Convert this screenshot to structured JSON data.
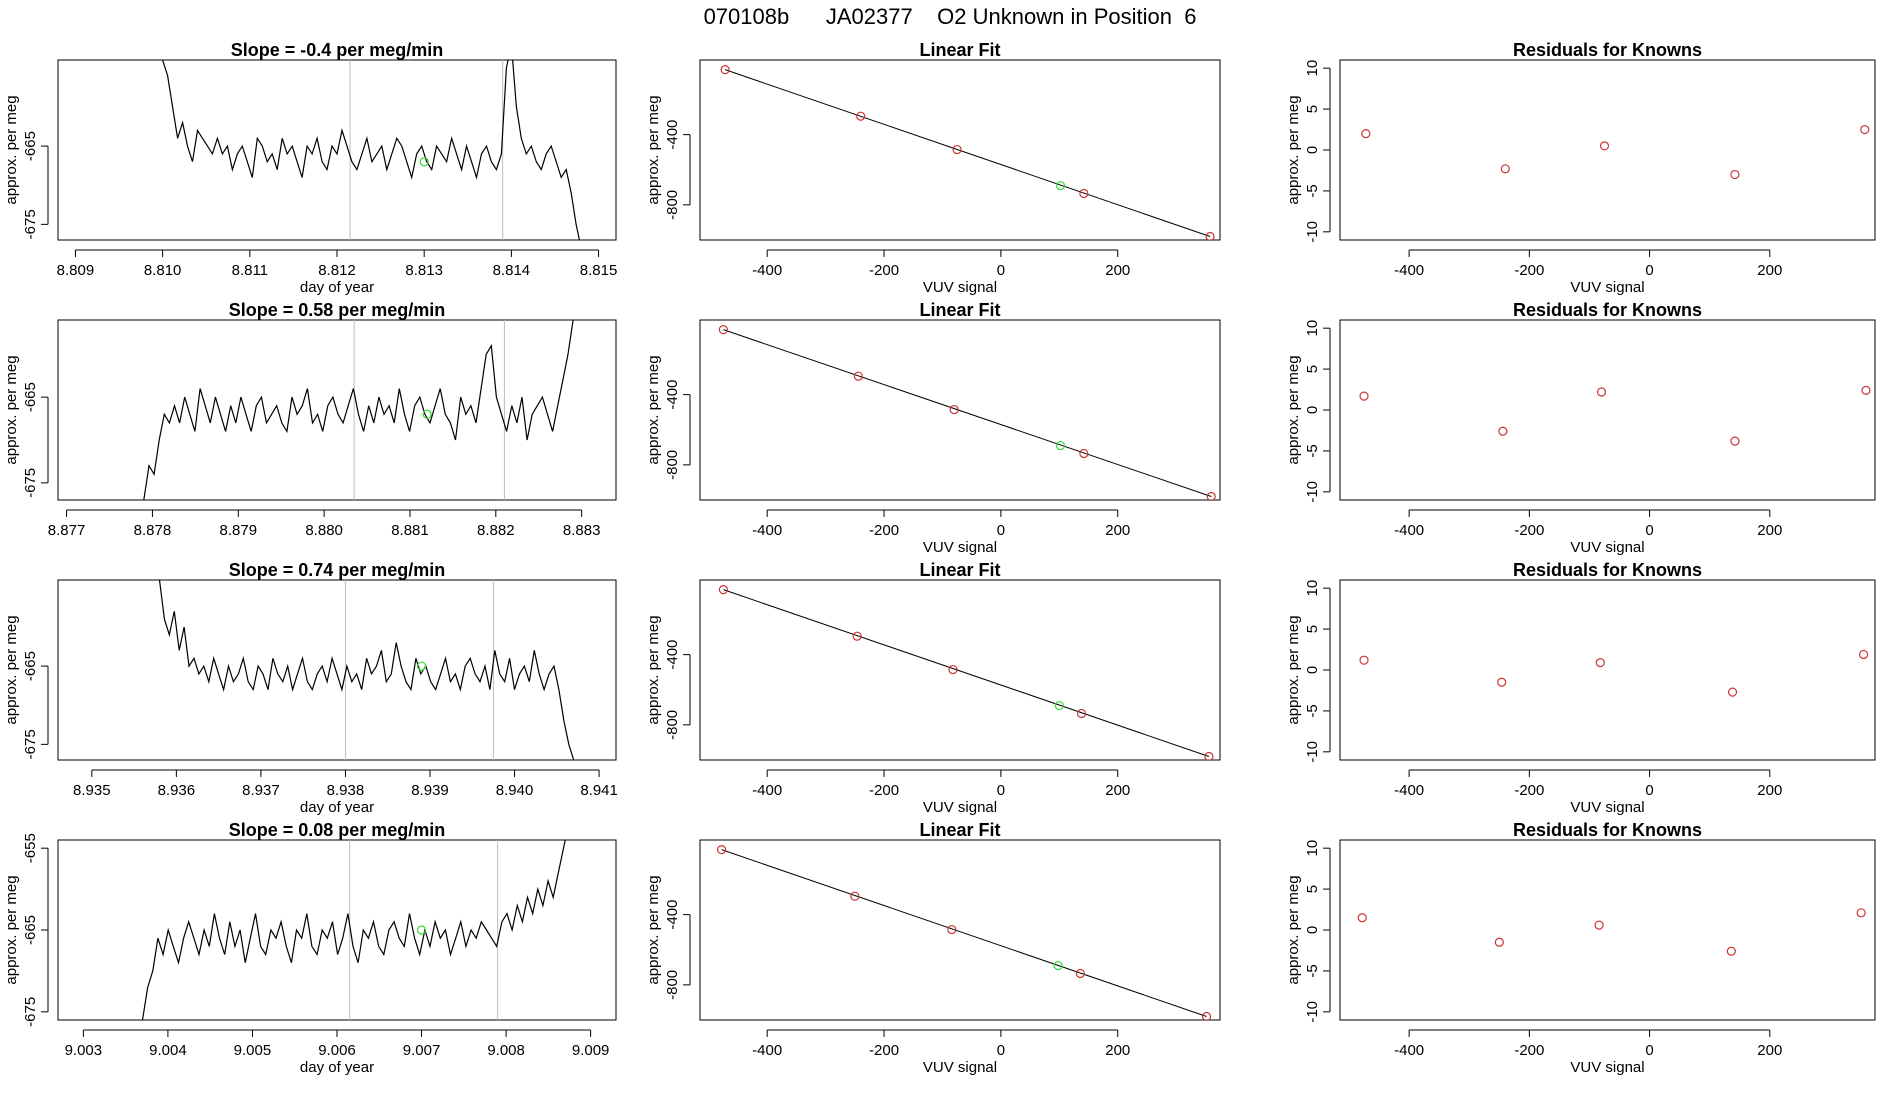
{
  "page_title": "070108b      JA02377    O2 Unknown in Position  6",
  "colors": {
    "line": "#000000",
    "known_point": "#cd3333",
    "unknown_point": "#33dd33",
    "marker_line": "#bebebe"
  },
  "chart_data": [
    {
      "type": "line",
      "row": 1,
      "panel": "time-series",
      "title": "Slope =  -0.4  per meg/min",
      "xlabel": "day of year",
      "ylabel": "approx. per meg",
      "xlim": [
        8.8088,
        8.8152
      ],
      "ylim": [
        -677,
        -654
      ],
      "xticks": [
        "8.809",
        "8.810",
        "8.811",
        "8.812",
        "8.813",
        "8.814",
        "8.815"
      ],
      "xtick_values": [
        8.809,
        8.81,
        8.811,
        8.812,
        8.813,
        8.814,
        8.815
      ],
      "yticks": [
        "-665",
        "-675"
      ],
      "ytick_values": [
        -665,
        -675
      ],
      "x_start": 8.81,
      "x_end": 8.8148,
      "values": [
        -654,
        -656,
        -660,
        -664,
        -662,
        -665,
        -667,
        -663,
        -664,
        -665,
        -666,
        -664,
        -666,
        -665,
        -668,
        -666,
        -665,
        -667,
        -669,
        -664,
        -665,
        -667,
        -666,
        -668,
        -664,
        -666,
        -665,
        -667,
        -669,
        -665,
        -666,
        -664,
        -667,
        -668,
        -665,
        -666,
        -663,
        -665,
        -667,
        -668,
        -666,
        -664,
        -667,
        -666,
        -665,
        -668,
        -666,
        -664,
        -665,
        -667,
        -669,
        -666,
        -665,
        -667,
        -668,
        -665,
        -666,
        -667,
        -664,
        -666,
        -668,
        -665,
        -667,
        -669,
        -666,
        -665,
        -667,
        -668,
        -666,
        -655,
        -652,
        -660,
        -664,
        -666,
        -665,
        -667,
        -668,
        -666,
        -665,
        -667,
        -669,
        -668,
        -671,
        -675,
        -678
      ],
      "unknown_point": {
        "x": 8.813,
        "y": -667
      },
      "marker_lines": [
        8.81215,
        8.8139
      ]
    },
    {
      "type": "scatter",
      "row": 1,
      "panel": "linear-fit",
      "title": "Linear Fit",
      "xlabel": "VUV signal",
      "ylabel": "approx. per meg",
      "xlim": [
        -515,
        375
      ],
      "ylim": [
        -1000,
        25
      ],
      "xticks": [
        "-400",
        "-200",
        "0",
        "200"
      ],
      "xtick_values": [
        -400,
        -200,
        0,
        200
      ],
      "yticks": [
        "-400",
        "-800"
      ],
      "ytick_values": [
        -400,
        -800
      ],
      "known_points": [
        {
          "x": -472,
          "y": -30
        },
        {
          "x": -240,
          "y": -295
        },
        {
          "x": -75,
          "y": -485
        },
        {
          "x": 142,
          "y": -735
        },
        {
          "x": 358,
          "y": -980
        }
      ],
      "unknown_point": {
        "x": 102,
        "y": -690
      },
      "fit_line": [
        {
          "x": -472,
          "y": -30
        },
        {
          "x": 358,
          "y": -980
        }
      ]
    },
    {
      "type": "scatter",
      "row": 1,
      "panel": "residuals",
      "title": "Residuals for Knowns",
      "xlabel": "VUV signal",
      "ylabel": "approx. per meg",
      "xlim": [
        -515,
        375
      ],
      "ylim": [
        -11,
        11
      ],
      "xticks": [
        "-400",
        "-200",
        "0",
        "200"
      ],
      "xtick_values": [
        -400,
        -200,
        0,
        200
      ],
      "yticks": [
        "10",
        "5",
        "0",
        "-5",
        "-10"
      ],
      "ytick_values": [
        10,
        5,
        0,
        -5,
        -10
      ],
      "known_points": [
        {
          "x": -472,
          "y": 2.0
        },
        {
          "x": -240,
          "y": -2.3
        },
        {
          "x": -75,
          "y": 0.5
        },
        {
          "x": 142,
          "y": -3.0
        },
        {
          "x": 358,
          "y": 2.5
        }
      ]
    },
    {
      "type": "line",
      "row": 2,
      "panel": "time-series",
      "title": "Slope =  0.58  per meg/min",
      "xlabel": "",
      "ylabel": "approx. per meg",
      "xlim": [
        8.8769,
        8.8834
      ],
      "ylim": [
        -677,
        -656
      ],
      "xticks": [
        "8.877",
        "8.878",
        "8.879",
        "8.880",
        "8.881",
        "8.882",
        "8.883"
      ],
      "xtick_values": [
        8.877,
        8.878,
        8.879,
        8.88,
        8.881,
        8.882,
        8.883
      ],
      "yticks": [
        "-665",
        "-675"
      ],
      "ytick_values": [
        -665,
        -675
      ],
      "x_start": 8.8779,
      "x_end": 8.8829,
      "values": [
        -677,
        -673,
        -674,
        -670,
        -667,
        -668,
        -666,
        -668,
        -665,
        -667,
        -669,
        -664,
        -666,
        -668,
        -665,
        -667,
        -669,
        -666,
        -668,
        -665,
        -667,
        -669,
        -666,
        -665,
        -668,
        -667,
        -666,
        -668,
        -669,
        -665,
        -667,
        -666,
        -664,
        -668,
        -667,
        -669,
        -666,
        -665,
        -667,
        -668,
        -666,
        -664,
        -667,
        -669,
        -666,
        -668,
        -665,
        -667,
        -666,
        -668,
        -664,
        -667,
        -669,
        -666,
        -665,
        -667,
        -668,
        -666,
        -664,
        -667,
        -668,
        -670,
        -665,
        -667,
        -666,
        -668,
        -664,
        -660,
        -659,
        -665,
        -667,
        -669,
        -666,
        -668,
        -665,
        -670,
        -667,
        -666,
        -665,
        -667,
        -669,
        -666,
        -663,
        -660,
        -656
      ],
      "unknown_point": {
        "x": 8.8812,
        "y": -667
      },
      "marker_lines": [
        8.88035,
        8.8821
      ]
    },
    {
      "type": "scatter",
      "row": 2,
      "panel": "linear-fit",
      "title": "Linear Fit",
      "xlabel": "VUV signal",
      "ylabel": "approx. per meg",
      "xlim": [
        -515,
        375
      ],
      "ylim": [
        -1000,
        25
      ],
      "xticks": [
        "-400",
        "-200",
        "0",
        "200"
      ],
      "xtick_values": [
        -400,
        -200,
        0,
        200
      ],
      "yticks": [
        "-400",
        "-800"
      ],
      "ytick_values": [
        -400,
        -800
      ],
      "known_points": [
        {
          "x": -475,
          "y": -30
        },
        {
          "x": -244,
          "y": -295
        },
        {
          "x": -80,
          "y": -485
        },
        {
          "x": 142,
          "y": -735
        },
        {
          "x": 360,
          "y": -980
        }
      ],
      "unknown_point": {
        "x": 102,
        "y": -690
      },
      "fit_line": [
        {
          "x": -475,
          "y": -30
        },
        {
          "x": 360,
          "y": -980
        }
      ]
    },
    {
      "type": "scatter",
      "row": 2,
      "panel": "residuals",
      "title": "Residuals for Knowns",
      "xlabel": "VUV signal",
      "ylabel": "approx. per meg",
      "xlim": [
        -515,
        375
      ],
      "ylim": [
        -11,
        11
      ],
      "xticks": [
        "-400",
        "-200",
        "0",
        "200"
      ],
      "xtick_values": [
        -400,
        -200,
        0,
        200
      ],
      "yticks": [
        "10",
        "5",
        "0",
        "-5",
        "-10"
      ],
      "ytick_values": [
        10,
        5,
        0,
        -5,
        -10
      ],
      "known_points": [
        {
          "x": -475,
          "y": 1.7
        },
        {
          "x": -244,
          "y": -2.6
        },
        {
          "x": -80,
          "y": 2.2
        },
        {
          "x": 142,
          "y": -3.8
        },
        {
          "x": 360,
          "y": 2.4
        }
      ]
    },
    {
      "type": "line",
      "row": 3,
      "panel": "time-series",
      "title": "Slope =  0.74  per meg/min",
      "xlabel": "day of year",
      "ylabel": "approx. per meg",
      "xlim": [
        8.9346,
        8.9412
      ],
      "ylim": [
        -677,
        -654
      ],
      "xticks": [
        "8.935",
        "8.936",
        "8.937",
        "8.938",
        "8.939",
        "8.940",
        "8.941"
      ],
      "xtick_values": [
        8.935,
        8.936,
        8.937,
        8.938,
        8.939,
        8.94,
        8.941
      ],
      "yticks": [
        "-665",
        "-675"
      ],
      "ytick_values": [
        -665,
        -675
      ],
      "x_start": 8.9358,
      "x_end": 8.9407,
      "values": [
        -654,
        -659,
        -661,
        -658,
        -663,
        -660,
        -665,
        -664,
        -666,
        -665,
        -667,
        -664,
        -666,
        -668,
        -665,
        -667,
        -666,
        -664,
        -667,
        -668,
        -665,
        -666,
        -668,
        -664,
        -666,
        -667,
        -665,
        -668,
        -666,
        -664,
        -667,
        -668,
        -666,
        -665,
        -667,
        -664,
        -666,
        -668,
        -665,
        -667,
        -666,
        -668,
        -664,
        -666,
        -665,
        -663,
        -667,
        -666,
        -662,
        -665,
        -667,
        -668,
        -664,
        -666,
        -665,
        -667,
        -668,
        -666,
        -664,
        -667,
        -666,
        -668,
        -665,
        -664,
        -666,
        -667,
        -665,
        -668,
        -663,
        -666,
        -667,
        -664,
        -668,
        -666,
        -665,
        -667,
        -663,
        -666,
        -668,
        -666,
        -665,
        -668,
        -672,
        -675,
        -677
      ],
      "unknown_point": {
        "x": 8.9389,
        "y": -665
      },
      "marker_lines": [
        8.938,
        8.93975
      ]
    },
    {
      "type": "scatter",
      "row": 3,
      "panel": "linear-fit",
      "title": "Linear Fit",
      "xlabel": "VUV signal",
      "ylabel": "approx. per meg",
      "xlim": [
        -515,
        375
      ],
      "ylim": [
        -1000,
        25
      ],
      "xticks": [
        "-400",
        "-200",
        "0",
        "200"
      ],
      "xtick_values": [
        -400,
        -200,
        0,
        200
      ],
      "yticks": [
        "-400",
        "-800"
      ],
      "ytick_values": [
        -400,
        -800
      ],
      "known_points": [
        {
          "x": -475,
          "y": -30
        },
        {
          "x": -246,
          "y": -295
        },
        {
          "x": -82,
          "y": -485
        },
        {
          "x": 138,
          "y": -735
        },
        {
          "x": 356,
          "y": -980
        }
      ],
      "unknown_point": {
        "x": 100,
        "y": -690
      },
      "fit_line": [
        {
          "x": -475,
          "y": -30
        },
        {
          "x": 356,
          "y": -980
        }
      ]
    },
    {
      "type": "scatter",
      "row": 3,
      "panel": "residuals",
      "title": "Residuals for Knowns",
      "xlabel": "VUV signal",
      "ylabel": "approx. per meg",
      "xlim": [
        -515,
        375
      ],
      "ylim": [
        -11,
        11
      ],
      "xticks": [
        "-400",
        "-200",
        "0",
        "200"
      ],
      "xtick_values": [
        -400,
        -200,
        0,
        200
      ],
      "yticks": [
        "10",
        "5",
        "0",
        "-5",
        "-10"
      ],
      "ytick_values": [
        10,
        5,
        0,
        -5,
        -10
      ],
      "known_points": [
        {
          "x": -475,
          "y": 1.2
        },
        {
          "x": -246,
          "y": -1.5
        },
        {
          "x": -82,
          "y": 0.9
        },
        {
          "x": 138,
          "y": -2.7
        },
        {
          "x": 356,
          "y": 1.9
        }
      ]
    },
    {
      "type": "line",
      "row": 4,
      "panel": "time-series",
      "title": "Slope =  0.08  per meg/min",
      "xlabel": "day of year",
      "ylabel": "approx. per meg",
      "xlim": [
        9.0027,
        9.0093
      ],
      "ylim": [
        -676,
        -654
      ],
      "xticks": [
        "9.003",
        "9.004",
        "9.005",
        "9.006",
        "9.007",
        "9.008",
        "9.009"
      ],
      "xtick_values": [
        9.003,
        9.004,
        9.005,
        9.006,
        9.007,
        9.008,
        9.009
      ],
      "yticks": [
        "-655",
        "-665",
        "-675"
      ],
      "ytick_values": [
        -655,
        -665,
        -675
      ],
      "x_start": 9.0037,
      "x_end": 9.0088,
      "values": [
        -676,
        -672,
        -670,
        -666,
        -668,
        -665,
        -667,
        -669,
        -666,
        -664,
        -666,
        -668,
        -665,
        -667,
        -663,
        -666,
        -668,
        -664,
        -667,
        -665,
        -669,
        -666,
        -663,
        -667,
        -668,
        -665,
        -666,
        -664,
        -667,
        -669,
        -665,
        -666,
        -663,
        -667,
        -668,
        -665,
        -666,
        -664,
        -668,
        -666,
        -663,
        -667,
        -669,
        -665,
        -666,
        -664,
        -667,
        -668,
        -665,
        -664,
        -666,
        -667,
        -663,
        -666,
        -668,
        -665,
        -667,
        -664,
        -666,
        -665,
        -668,
        -666,
        -664,
        -667,
        -665,
        -666,
        -664,
        -665,
        -666,
        -667,
        -664,
        -663,
        -665,
        -662,
        -664,
        -661,
        -663,
        -660,
        -662,
        -659,
        -661,
        -658,
        -655,
        -652,
        -650
      ],
      "unknown_point": {
        "x": 9.007,
        "y": -665
      },
      "marker_lines": [
        9.00615,
        9.0079
      ]
    },
    {
      "type": "scatter",
      "row": 4,
      "panel": "linear-fit",
      "title": "Linear Fit",
      "xlabel": "VUV signal",
      "ylabel": "approx. per meg",
      "xlim": [
        -515,
        375
      ],
      "ylim": [
        -1000,
        25
      ],
      "xticks": [
        "-400",
        "-200",
        "0",
        "200"
      ],
      "xtick_values": [
        -400,
        -200,
        0,
        200
      ],
      "yticks": [
        "-400",
        "-800"
      ],
      "ytick_values": [
        -400,
        -800
      ],
      "known_points": [
        {
          "x": -478,
          "y": -30
        },
        {
          "x": -250,
          "y": -295
        },
        {
          "x": -84,
          "y": -485
        },
        {
          "x": 136,
          "y": -735
        },
        {
          "x": 352,
          "y": -980
        }
      ],
      "unknown_point": {
        "x": 98,
        "y": -690
      },
      "fit_line": [
        {
          "x": -478,
          "y": -30
        },
        {
          "x": 352,
          "y": -980
        }
      ]
    },
    {
      "type": "scatter",
      "row": 4,
      "panel": "residuals",
      "title": "Residuals for Knowns",
      "xlabel": "VUV signal",
      "ylabel": "approx. per meg",
      "xlim": [
        -515,
        375
      ],
      "ylim": [
        -11,
        11
      ],
      "xticks": [
        "-400",
        "-200",
        "0",
        "200"
      ],
      "xtick_values": [
        -400,
        -200,
        0,
        200
      ],
      "yticks": [
        "10",
        "5",
        "0",
        "-5",
        "-10"
      ],
      "ytick_values": [
        10,
        5,
        0,
        -5,
        -10
      ],
      "known_points": [
        {
          "x": -478,
          "y": 1.5
        },
        {
          "x": -250,
          "y": -1.5
        },
        {
          "x": -84,
          "y": 0.6
        },
        {
          "x": 136,
          "y": -2.6
        },
        {
          "x": 352,
          "y": 2.1
        }
      ]
    }
  ]
}
